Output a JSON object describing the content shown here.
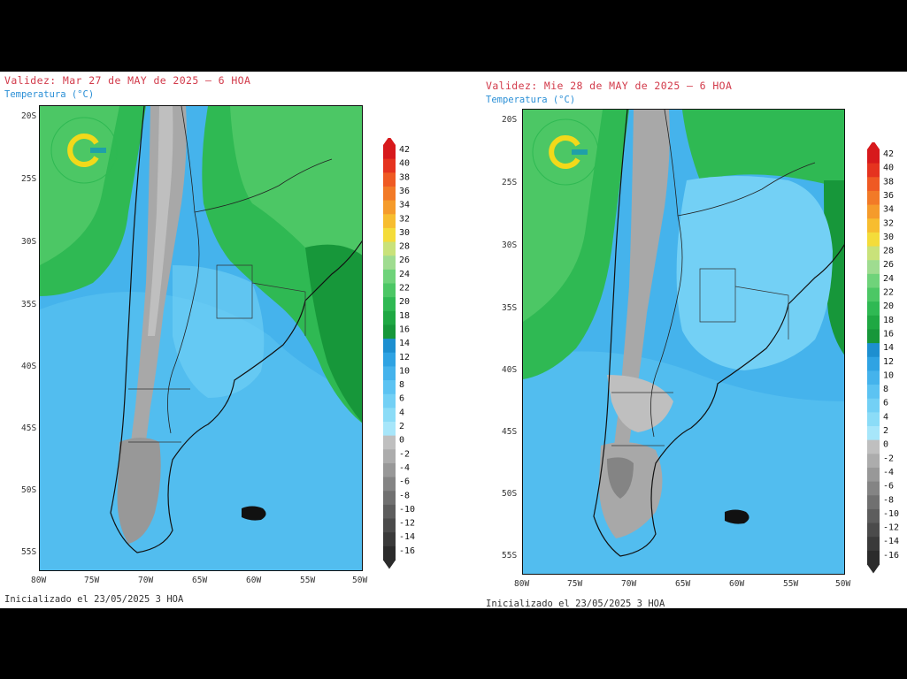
{
  "panels": [
    {
      "validity": "Validez: Mar 27 de MAY de 2025 – 6 HOA",
      "variable": "Temperatura (°C)",
      "initialized": "Inicializado el 23/05/2025 3 HOA",
      "lat_ticks": [
        "20S",
        "25S",
        "30S",
        "35S",
        "40S",
        "45S",
        "50S",
        "55S"
      ],
      "lon_ticks": [
        "80W",
        "75W",
        "70W",
        "65W",
        "60W",
        "55W",
        "50W"
      ]
    },
    {
      "validity": "Validez: Mie 28 de MAY de 2025 – 6 HOA",
      "variable": "Temperatura (°C)",
      "initialized": "Inicializado el 23/05/2025 3 HOA",
      "lat_ticks": [
        "20S",
        "25S",
        "30S",
        "35S",
        "40S",
        "45S",
        "50S",
        "55S"
      ],
      "lon_ticks": [
        "80W",
        "75W",
        "70W",
        "65W",
        "60W",
        "55W",
        "50W"
      ]
    }
  ],
  "colorbar": {
    "levels": [
      "42",
      "40",
      "38",
      "36",
      "34",
      "32",
      "30",
      "28",
      "26",
      "24",
      "22",
      "20",
      "18",
      "16",
      "14",
      "12",
      "10",
      "8",
      "6",
      "4",
      "2",
      "0",
      "-2",
      "-4",
      "-6",
      "-8",
      "-10",
      "-12",
      "-14",
      "-16"
    ],
    "colors": [
      "#d7191c",
      "#e5331f",
      "#ef5a23",
      "#f27a27",
      "#f59b2b",
      "#f7bd2f",
      "#f4dc3a",
      "#c9e27a",
      "#9fdc90",
      "#6fd37a",
      "#4cc765",
      "#2fb953",
      "#1fa843",
      "#17973a",
      "#1d8fd0",
      "#2fa3e3",
      "#45b3ec",
      "#5cc3f2",
      "#73d0f5",
      "#8bdcf7",
      "#a7e6fa",
      "#bfbfbf",
      "#acacac",
      "#989898",
      "#848484",
      "#707070",
      "#5d5d5d",
      "#4b4b4b",
      "#3a3a3a",
      "#2b2b2b"
    ]
  },
  "map_colors": {
    "warm_green": "#2fb953",
    "deep_green": "#17973a",
    "ocean_blue": "#45b3ec",
    "light_blue": "#73d0f5",
    "cold_grey": "#a8a8a8",
    "logo_yellow": "#f2d91a",
    "logo_teal": "#1fa0a8"
  }
}
